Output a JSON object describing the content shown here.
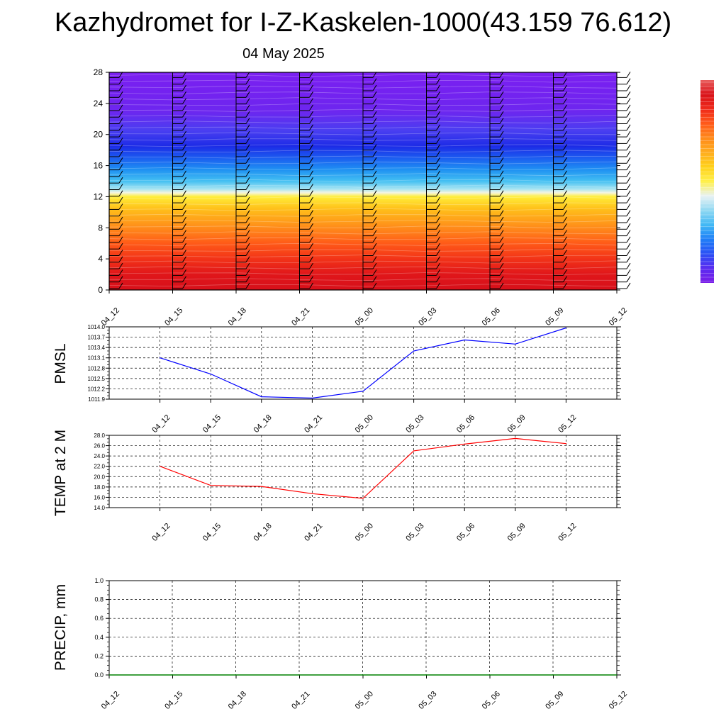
{
  "header": {
    "title": "Kazhydromet for I-Z-Kaskelen-1000(43.159 76.612)",
    "date": "04 May 2025"
  },
  "colors": {
    "pmsl_line": "#0000ff",
    "temp_line": "#ff0000",
    "precip_line": "#008000",
    "grid": "#000000"
  },
  "chart_data": [
    {
      "type": "heatmap",
      "name": "cross-section",
      "x_ticks": [
        "04_12",
        "04_15",
        "04_18",
        "04_21",
        "05_00",
        "05_03",
        "05_06",
        "05_09",
        "05_12"
      ],
      "y_ticks": [
        "0",
        "4",
        "8",
        "12",
        "16",
        "20",
        "24",
        "28"
      ],
      "ylim": [
        0,
        28
      ],
      "colorbar": {
        "stops": [
          "#7a1ee8",
          "#5a2cf0",
          "#2b50f5",
          "#1f7ef7",
          "#41b8f5",
          "#8fd8f2",
          "#e8f2f4",
          "#fff04a",
          "#ffd11a",
          "#ffad1f",
          "#ff8a1a",
          "#ff5a1a",
          "#ef2a1a",
          "#d9131a",
          "#e85a5a"
        ]
      },
      "field_stops": [
        {
          "y": 28,
          "color": "#7b1ff0"
        },
        {
          "y": 23,
          "color": "#6d26ef"
        },
        {
          "y": 20.5,
          "color": "#4a3ef1"
        },
        {
          "y": 18.5,
          "color": "#1c2be6"
        },
        {
          "y": 17,
          "color": "#1c5cf0"
        },
        {
          "y": 15.5,
          "color": "#1e90f2"
        },
        {
          "y": 14,
          "color": "#44c0f2"
        },
        {
          "y": 13,
          "color": "#a6e4f2"
        },
        {
          "y": 12.5,
          "color": "#f4f4dc"
        },
        {
          "y": 12,
          "color": "#ffee3a"
        },
        {
          "y": 10.5,
          "color": "#ffc11a"
        },
        {
          "y": 9,
          "color": "#ffa11a"
        },
        {
          "y": 7.5,
          "color": "#ff801a"
        },
        {
          "y": 6,
          "color": "#ff5a18"
        },
        {
          "y": 4,
          "color": "#f23318"
        },
        {
          "y": 2,
          "color": "#e0161a"
        },
        {
          "y": 0,
          "color": "#d6101a"
        }
      ]
    },
    {
      "type": "line",
      "name": "pmsl",
      "ylabel": "PMSL",
      "x": [
        "04_12",
        "04_15",
        "04_18",
        "04_21",
        "05_00",
        "05_03",
        "05_06",
        "05_09",
        "05_12"
      ],
      "values": [
        1013.1,
        1012.63,
        1011.97,
        1011.93,
        1012.13,
        1013.3,
        1013.62,
        1013.5,
        1013.97
      ],
      "ylim": [
        1011.9,
        1014.0
      ],
      "y_ticks": [
        "1014.0",
        "1013.7",
        "1013.4",
        "1013.1",
        "1012.8",
        "1012.5",
        "1012.2",
        "1011.9"
      ],
      "grid": true
    },
    {
      "type": "line",
      "name": "temp",
      "ylabel": "TEMP at 2 M",
      "x": [
        "04_12",
        "04_15",
        "04_18",
        "04_21",
        "05_00",
        "05_03",
        "05_06",
        "05_09",
        "05_12"
      ],
      "values": [
        22.0,
        18.3,
        18.1,
        16.7,
        15.8,
        25.0,
        26.3,
        27.4,
        26.4
      ],
      "ylim": [
        14.0,
        28.0
      ],
      "y_ticks": [
        "28.0",
        "26.0",
        "24.0",
        "22.0",
        "20.0",
        "18.0",
        "16.0",
        "14.0"
      ],
      "grid": true
    },
    {
      "type": "line",
      "name": "precip",
      "ylabel": "PRECIP, mm",
      "x": [
        "04_12",
        "04_15",
        "04_18",
        "04_21",
        "05_00",
        "05_03",
        "05_06",
        "05_09",
        "05_12"
      ],
      "values": [
        0,
        0,
        0,
        0,
        0,
        0,
        0,
        0,
        0
      ],
      "ylim": [
        0,
        1.0
      ],
      "y_ticks": [
        "1.0",
        "0.8",
        "0.6",
        "0.4",
        "0.2",
        "0.0"
      ],
      "grid": true
    }
  ]
}
